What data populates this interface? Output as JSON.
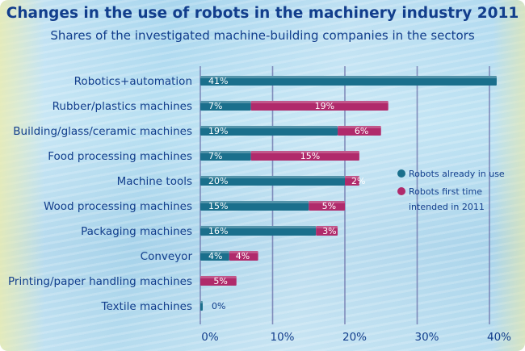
{
  "chart_data": {
    "type": "bar",
    "orientation": "horizontal",
    "stacked": true,
    "title": "Changes in the use of robots in the machinery industry 2011",
    "subtitle": "Shares of the investigated machine-building companies in the sectors",
    "categories": [
      "Robotics+automation",
      "Rubber/plastics machines",
      "Building/glass/ceramic machines",
      "Food processing machines",
      "Machine tools",
      "Wood processing machines",
      "Packaging machines",
      "Conveyor",
      "Printing/paper handling machines",
      "Textile machines"
    ],
    "series": [
      {
        "name": "Robots already in use",
        "color": "#1a6f8c",
        "values": [
          41,
          7,
          19,
          7,
          20,
          15,
          16,
          4,
          0,
          0
        ]
      },
      {
        "name": "Robots first time intended in 2011",
        "color": "#b02a6b",
        "values": [
          null,
          19,
          6,
          15,
          2,
          5,
          3,
          4,
          5,
          null
        ]
      }
    ],
    "value_labels": [
      [
        "41%"
      ],
      [
        "7%",
        "19%"
      ],
      [
        "19%",
        "6%"
      ],
      [
        "7%",
        "15%"
      ],
      [
        "20%",
        "2%"
      ],
      [
        "15%",
        "5%"
      ],
      [
        "16%",
        "3%"
      ],
      [
        "4%",
        "4%"
      ],
      [
        "5%"
      ],
      [
        "0%"
      ]
    ],
    "x_ticks": [
      "0%",
      "10%",
      "20%",
      "30%",
      "40%"
    ],
    "xlim": [
      0,
      41
    ],
    "legend": {
      "position": "right",
      "entries": [
        {
          "label_lines": [
            "Robots already in use"
          ],
          "color": "#1a6f8c"
        },
        {
          "label_lines": [
            "Robots first time",
            "intended in 2011"
          ],
          "color": "#b02a6b"
        }
      ]
    },
    "grid": true
  }
}
